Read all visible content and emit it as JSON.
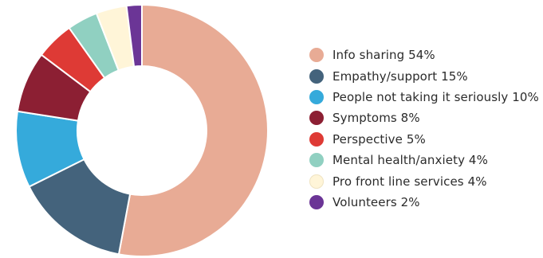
{
  "chart_data": {
    "type": "pie",
    "variant": "donut",
    "title": "",
    "legend_position": "right",
    "slices": [
      {
        "label": "Info sharing 54%",
        "value": 54,
        "color": "#e8ab95"
      },
      {
        "label": "Empathy/support 15%",
        "value": 15,
        "color": "#44637c"
      },
      {
        "label": "People not taking it seriously 10%",
        "value": 10,
        "color": "#35aadb"
      },
      {
        "label": "Symptoms 8%",
        "value": 8,
        "color": "#8c1f33"
      },
      {
        "label": "Perspective 5%",
        "value": 5,
        "color": "#de3a35"
      },
      {
        "label": "Mental health/anxiety 4%",
        "value": 4,
        "color": "#90d0c1"
      },
      {
        "label": "Pro front line services 4%",
        "value": 4,
        "color": "#fff5d8"
      },
      {
        "label": "Volunteers 2%",
        "value": 2,
        "color": "#6b3596"
      }
    ]
  }
}
